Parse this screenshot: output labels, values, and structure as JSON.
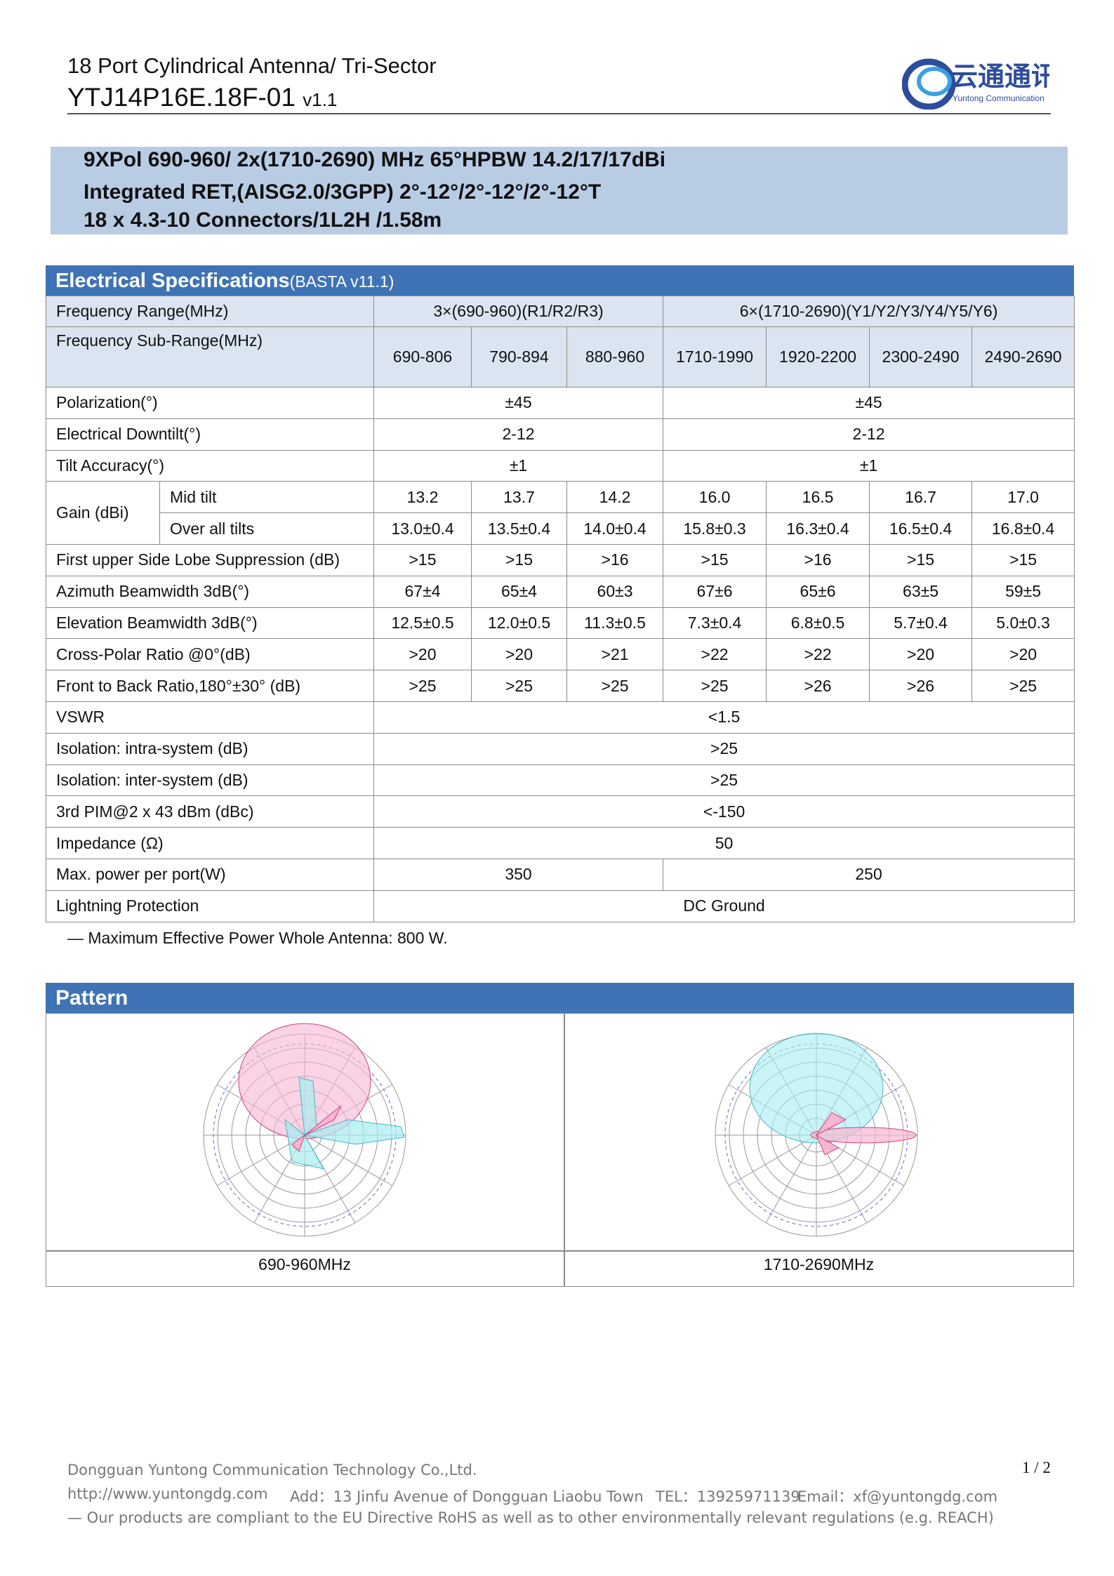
{
  "header": {
    "title": "18 Port Cylindrical Antenna/ Tri-Sector",
    "model": "YTJ14P16E.18F-01",
    "version": "v1.1",
    "logo_text": "云通通讯",
    "logo_sub": "Yuntong Communication"
  },
  "banner": {
    "lines": [
      "9XPol 690-960/ 2x(1710-2690) MHz 65°HPBW 14.2/17/17dBi",
      "Integrated RET,(AISG2.0/3GPP) 2°-12°/2°-12°/2°-12°T",
      "18 x 4.3-10 Connectors/1L2H /1.58m"
    ]
  },
  "table": {
    "title": "Electrical Specifications",
    "subtitle": "(BASTA v11.1)",
    "header_rows": [
      {
        "label": "Frequency Range(MHz)",
        "values": [
          "3×(690-960)(R1/R2/R3)",
          "6×(1710-2690)(Y1/Y2/Y3/Y4/Y5/Y6)"
        ]
      },
      {
        "label": "Frequency Sub-Range(MHz)",
        "values": [
          "690-806",
          "790-894",
          "880-960",
          "1710-1990",
          "1920-2200",
          "2300-2490",
          "2490-2690"
        ]
      }
    ],
    "rows": [
      {
        "label": "Polarization(°)",
        "values": [
          "±45",
          "±45"
        ]
      },
      {
        "label": "Electrical Downtilt(°)",
        "values": [
          "2-12",
          "2-12"
        ]
      },
      {
        "label": "Tilt Accuracy(°)",
        "values": [
          "±1",
          "±1"
        ]
      },
      {
        "label": "Gain (dBi)",
        "sub": [
          {
            "label": "Mid tilt",
            "values": [
              "13.2",
              "13.7",
              "14.2",
              "16.0",
              "16.5",
              "16.7",
              "17.0"
            ]
          },
          {
            "label": "Over all tilts",
            "values": [
              "13.0±0.4",
              "13.5±0.4",
              "14.0±0.4",
              "15.8±0.3",
              "16.3±0.4",
              "16.5±0.4",
              "16.8±0.4"
            ]
          }
        ]
      },
      {
        "label": "First upper Side Lobe Suppression (dB)",
        "values": [
          ">15",
          ">15",
          ">16",
          ">15",
          ">16",
          ">15",
          ">15"
        ]
      },
      {
        "label": "Azimuth Beamwidth 3dB(°)",
        "values": [
          "67±4",
          "65±4",
          "60±3",
          "67±6",
          "65±6",
          "63±5",
          "59±5"
        ]
      },
      {
        "label": "Elevation Beamwidth 3dB(°)",
        "values": [
          "12.5±0.5",
          "12.0±0.5",
          "11.3±0.5",
          "7.3±0.4",
          "6.8±0.5",
          "5.7±0.4",
          "5.0±0.3"
        ]
      },
      {
        "label": "Cross-Polar Ratio @0°(dB)",
        "values": [
          ">20",
          ">20",
          ">21",
          ">22",
          ">22",
          ">20",
          ">20"
        ]
      },
      {
        "label": "Front to Back Ratio,180°±30° (dB)",
        "values": [
          ">25",
          ">25",
          ">25",
          ">25",
          ">26",
          ">26",
          ">25"
        ]
      },
      {
        "label": "VSWR",
        "values": [
          "<1.5"
        ]
      },
      {
        "label": "Isolation: intra-system (dB)",
        "values": [
          ">25"
        ]
      },
      {
        "label": "Isolation: inter-system (dB)",
        "values": [
          ">25"
        ]
      },
      {
        "label": "3rd PIM@2 x 43 dBm (dBc)",
        "values": [
          "<-150"
        ]
      },
      {
        "label": "Impedance (Ω)",
        "values": [
          "50"
        ]
      },
      {
        "label": "Max. power per port(W)",
        "values": [
          "350",
          "250"
        ]
      },
      {
        "label": "Lightning Protection",
        "values": [
          "DC Ground"
        ]
      }
    ],
    "note": "— Maximum Effective Power Whole Antenna: 800 W."
  },
  "pattern": {
    "title": "Pattern",
    "captions": [
      "690-960MHz",
      "1710-2690MHz"
    ]
  },
  "footer": {
    "company": "Dongguan Yuntong Communication Technology Co.,Ltd.",
    "url": "http://www.yuntongdg.com",
    "address": "Add：13 Jinfu Avenue   of Dongguan Liaobu Town",
    "tel": "TEL：13925971139",
    "email": "Email：xf@yuntongdg.com",
    "compliance": "— Our products are compliant to the EU Directive RoHS as well as to other environmentally relevant regulations (e.g. REACH)",
    "page": "1 / 2"
  }
}
